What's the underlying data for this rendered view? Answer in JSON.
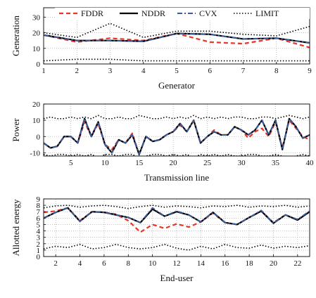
{
  "legend": {
    "position": "top (inside first panel)",
    "entries": [
      {
        "label": "FDDR",
        "color": "#e8352a",
        "style": "dashed"
      },
      {
        "label": "NDDR",
        "color": "#000000",
        "style": "solid"
      },
      {
        "label": "CVX",
        "color": "#3a5a9a",
        "style": "dashdot"
      },
      {
        "label": "LIMIT",
        "color": "#000000",
        "style": "dotted"
      }
    ]
  },
  "chart_data": [
    {
      "type": "line",
      "xlabel": "Generator",
      "ylabel": "Generation",
      "xlim": [
        1,
        9
      ],
      "ylim": [
        0,
        36
      ],
      "xticks": [
        1,
        2,
        3,
        4,
        5,
        6,
        7,
        8,
        9
      ],
      "yticks": [
        0,
        10,
        20,
        30
      ],
      "grid": true,
      "x": [
        1,
        2,
        3,
        4,
        5,
        6,
        7,
        8,
        9
      ],
      "series": [
        {
          "name": "FDDR",
          "values": [
            18.5,
            14,
            16.5,
            15,
            19.5,
            14,
            13,
            16.5,
            10.5
          ]
        },
        {
          "name": "NDDR",
          "values": [
            18.5,
            15,
            15,
            14.5,
            19.5,
            19,
            16,
            16.5,
            13.5
          ]
        },
        {
          "name": "CVX",
          "values": [
            18.5,
            15,
            15,
            14.5,
            19.5,
            19,
            16,
            16.5,
            13.5
          ]
        },
        {
          "name": "LIMIT",
          "values": [
            20,
            17,
            26,
            17,
            21,
            21,
            19,
            18,
            24
          ]
        },
        {
          "name": "LIMIT",
          "values": [
            2,
            3,
            3,
            2,
            2,
            2,
            2,
            2,
            2
          ]
        }
      ]
    },
    {
      "type": "line",
      "xlabel": "Transmission line",
      "ylabel": "Power",
      "xlim": [
        1,
        40
      ],
      "ylim": [
        -12,
        20
      ],
      "xticks": [
        5,
        10,
        15,
        20,
        25,
        30,
        35,
        40
      ],
      "yticks": [
        -10,
        0,
        10,
        20
      ],
      "grid": true,
      "x": [
        1,
        2,
        3,
        4,
        5,
        6,
        7,
        8,
        9,
        10,
        11,
        12,
        13,
        14,
        15,
        16,
        17,
        18,
        19,
        20,
        21,
        22,
        23,
        24,
        25,
        26,
        27,
        28,
        29,
        30,
        31,
        32,
        33,
        34,
        35,
        36,
        37,
        38,
        39,
        40
      ],
      "series": [
        {
          "name": "FDDR",
          "values": [
            -4,
            -7,
            -6,
            0,
            0,
            -4,
            9,
            0,
            8,
            -5,
            -8,
            -2,
            -4,
            2,
            -11,
            0,
            -3,
            -2,
            1,
            3,
            7,
            3,
            10,
            -4,
            0,
            4,
            1,
            1,
            6,
            4,
            -1,
            3,
            5,
            0,
            9,
            -7,
            10,
            5,
            0,
            -2
          ]
        },
        {
          "name": "NDDR",
          "values": [
            -4,
            -7,
            -6,
            0,
            0,
            -4,
            11,
            0,
            9,
            -5,
            -10,
            -2,
            -4,
            1,
            -11,
            0,
            -3,
            -2,
            1,
            3,
            8,
            3,
            10,
            -4,
            0,
            3,
            1,
            1,
            6,
            4,
            1,
            4,
            10,
            1,
            10,
            -8,
            11,
            6,
            -1,
            1
          ]
        },
        {
          "name": "CVX",
          "values": [
            -4,
            -7,
            -6,
            0,
            0,
            -4,
            11,
            0,
            9,
            -5,
            -10,
            -2,
            -4,
            1,
            -11,
            0,
            -3,
            -2,
            1,
            3,
            8,
            3,
            10,
            -4,
            0,
            3,
            1,
            1,
            6,
            4,
            1,
            4,
            10,
            1,
            10,
            -8,
            11,
            6,
            -1,
            1
          ]
        },
        {
          "name": "LIMIT",
          "values": [
            11,
            12,
            11,
            11,
            12,
            11,
            12,
            11,
            13,
            11,
            11,
            12,
            11,
            11,
            13,
            12,
            11,
            11,
            12,
            11,
            12,
            11,
            13,
            11,
            12,
            11,
            12,
            11,
            12,
            12,
            11,
            11,
            12,
            12,
            11,
            12,
            13,
            12,
            11,
            12
          ]
        },
        {
          "name": "LIMIT",
          "values": [
            -11,
            -12,
            -11,
            -11,
            -12,
            -11,
            -12,
            -11,
            -13,
            -11,
            -11,
            -12,
            -11,
            -11,
            -13,
            -12,
            -11,
            -11,
            -12,
            -11,
            -12,
            -11,
            -13,
            -11,
            -12,
            -11,
            -12,
            -11,
            -12,
            -12,
            -11,
            -11,
            -12,
            -12,
            -11,
            -12,
            -13,
            -12,
            -11,
            -12
          ]
        }
      ]
    },
    {
      "type": "line",
      "xlabel": "End-user",
      "ylabel": "Allotted energy",
      "xlim": [
        1,
        23
      ],
      "ylim": [
        0,
        9
      ],
      "xticks": [
        2,
        4,
        6,
        8,
        10,
        12,
        14,
        16,
        18,
        20,
        22
      ],
      "yticks": [
        0,
        1,
        2,
        3,
        4,
        5,
        6,
        7,
        8,
        9
      ],
      "grid": true,
      "x": [
        1,
        2,
        3,
        4,
        5,
        6,
        7,
        8,
        9,
        10,
        11,
        12,
        13,
        14,
        15,
        16,
        17,
        18,
        19,
        20,
        21,
        22,
        23
      ],
      "series": [
        {
          "name": "FDDR",
          "values": [
            6.9,
            7.1,
            7.6,
            5.6,
            7.0,
            6.9,
            6.6,
            5.6,
            3.8,
            5.0,
            4.4,
            5.1,
            4.6,
            5.4,
            6.8,
            5.3,
            5.0,
            6.1,
            7.1,
            5.3,
            6.5,
            5.7,
            7.0
          ]
        },
        {
          "name": "NDDR",
          "values": [
            6.0,
            6.9,
            7.6,
            5.5,
            7.0,
            6.9,
            6.5,
            6.1,
            5.3,
            7.4,
            6.3,
            7.0,
            6.5,
            5.4,
            6.9,
            5.3,
            5.0,
            6.1,
            7.1,
            5.2,
            6.5,
            5.7,
            7.0
          ]
        },
        {
          "name": "CVX",
          "values": [
            6.0,
            6.9,
            7.6,
            5.5,
            7.0,
            6.9,
            6.5,
            6.1,
            5.3,
            7.6,
            6.3,
            7.1,
            6.5,
            5.4,
            6.9,
            5.3,
            5.0,
            6.1,
            7.2,
            5.2,
            6.5,
            5.8,
            7.1
          ]
        },
        {
          "name": "LIMIT",
          "values": [
            7.6,
            7.9,
            8.0,
            7.7,
            7.9,
            8.0,
            7.8,
            7.5,
            7.8,
            8.0,
            7.7,
            7.9,
            7.8,
            7.6,
            7.9,
            7.8,
            8.0,
            7.7,
            7.9,
            7.8,
            8.0,
            7.7,
            7.9
          ]
        },
        {
          "name": "LIMIT",
          "values": [
            1.2,
            1.6,
            1.4,
            1.9,
            1.2,
            1.4,
            1.9,
            1.4,
            1.2,
            1.4,
            1.9,
            1.3,
            1.0,
            1.6,
            1.2,
            1.9,
            1.4,
            1.3,
            1.8,
            1.3,
            1.6,
            1.4,
            1.7
          ]
        }
      ]
    }
  ]
}
